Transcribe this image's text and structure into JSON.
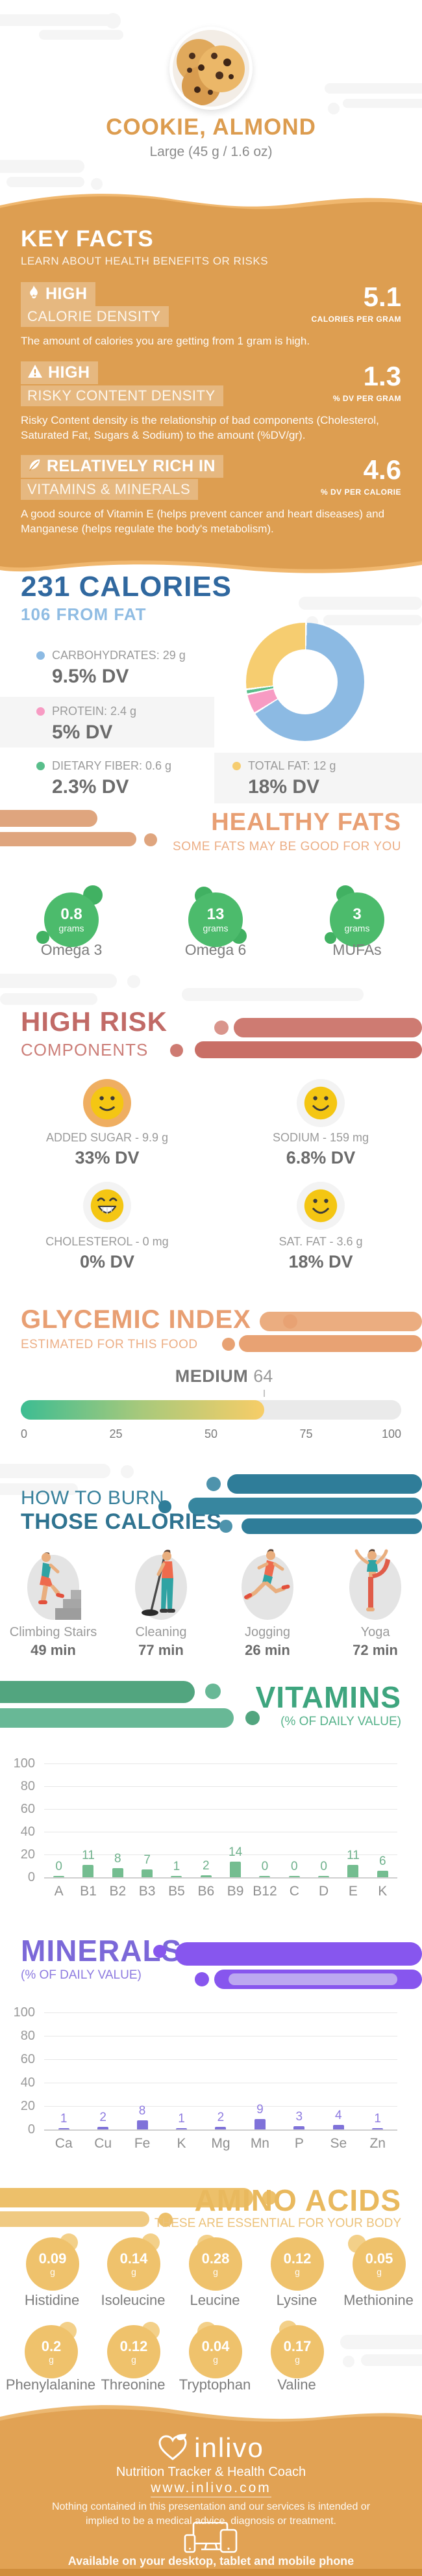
{
  "header": {
    "title": "COOKIE, ALMOND",
    "subtitle": "Large (45 g / 1.6 oz)"
  },
  "key_facts": {
    "title": "KEY FACTS",
    "subtitle": "LEARN ABOUT HEALTH BENEFITS OR RISKS",
    "facts": [
      {
        "icon": "flame-icon",
        "level": "HIGH",
        "name": "CALORIE DENSITY",
        "value": "5.1",
        "unit": "CALORIES PER GRAM",
        "description": "The amount of calories you are getting from 1 gram is high."
      },
      {
        "icon": "warning-icon",
        "level": "HIGH",
        "name": "RISKY CONTENT DENSITY",
        "value": "1.3",
        "unit": "% DV PER GRAM",
        "description": "Risky Content density is the relationship of bad components (Cholesterol, Saturated Fat, Sugars & Sodium) to the amount (%DV/gr)."
      },
      {
        "icon": "leaf-icon",
        "level": "RELATIVELY RICH IN",
        "name": "VITAMINS & MINERALS",
        "value": "4.6",
        "unit": "% DV PER CALORIE",
        "description": "A good source of Vitamin E (helps prevent cancer and heart diseases) and Manganese (helps regulate the body's metabolism)."
      }
    ]
  },
  "calories": {
    "title": "231 CALORIES",
    "subtitle": "106 FROM FAT",
    "macros": [
      {
        "label": "CARBOHYDRATES: 29 g",
        "dv": "9.5% DV",
        "color": "#8CBAE3"
      },
      {
        "label": "PROTEIN: 2.4 g",
        "dv": "5% DV",
        "color": "#F79BC3"
      },
      {
        "label": "DIETARY FIBER: 0.6 g",
        "dv": "2.3% DV",
        "color": "#59BE8B"
      },
      {
        "label": "TOTAL FAT: 12 g",
        "dv": "18% DV",
        "color": "#F6CD70"
      }
    ]
  },
  "healthy_fats": {
    "title": "HEALTHY FATS",
    "subtitle": "SOME FATS MAY BE GOOD FOR YOU",
    "items": [
      {
        "value": "0.8",
        "unit": "grams",
        "label": "Omega 3"
      },
      {
        "value": "13",
        "unit": "grams",
        "label": "Omega 6"
      },
      {
        "value": "3",
        "unit": "grams",
        "label": "MUFAs"
      }
    ]
  },
  "high_risk": {
    "title": "HIGH RISK",
    "subtitle": "COMPONENTS",
    "items": [
      {
        "label": "ADDED SUGAR - 9.9 g",
        "dv": "33% DV",
        "face": "smile-icon",
        "ring_color": "#EFAE61"
      },
      {
        "label": "SODIUM - 159 mg",
        "dv": "6.8% DV",
        "face": "smile-icon",
        "ring_color": "#F3F3F3"
      },
      {
        "label": "CHOLESTEROL - 0 mg",
        "dv": "0% DV",
        "face": "grin-icon",
        "ring_color": "#F3F3F3"
      },
      {
        "label": "SAT. FAT - 3.6 g",
        "dv": "18% DV",
        "face": "smile-icon",
        "ring_color": "#F3F3F3"
      }
    ]
  },
  "glycemic": {
    "title": "GLYCEMIC INDEX",
    "subtitle": "ESTIMATED FOR THIS FOOD"
  },
  "burn": {
    "title_line1": "HOW TO BURN",
    "title_line2": "THOSE CALORIES",
    "activities": [
      {
        "icon": "climbing-stairs-icon",
        "label": "Climbing Stairs",
        "minutes": "49 min"
      },
      {
        "icon": "cleaning-icon",
        "label": "Cleaning",
        "minutes": "77 min"
      },
      {
        "icon": "jogging-icon",
        "label": "Jogging",
        "minutes": "26 min"
      },
      {
        "icon": "yoga-icon",
        "label": "Yoga",
        "minutes": "72 min"
      }
    ]
  },
  "vitamins": {
    "title": "VITAMINS",
    "subtitle": "(% OF DAILY VALUE)"
  },
  "minerals": {
    "title": "MINERALS",
    "subtitle": "(% OF DAILY VALUE)"
  },
  "amino": {
    "title": "AMINO ACIDS",
    "subtitle": "THESE ARE ESSENTIAL FOR YOUR BODY",
    "items": [
      {
        "value": "0.09",
        "unit": "g",
        "label": "Histidine"
      },
      {
        "value": "0.14",
        "unit": "g",
        "label": "Isoleucine"
      },
      {
        "value": "0.28",
        "unit": "g",
        "label": "Leucine"
      },
      {
        "value": "0.12",
        "unit": "g",
        "label": "Lysine"
      },
      {
        "value": "0.05",
        "unit": "g",
        "label": "Methionine"
      },
      {
        "value": "0.2",
        "unit": "g",
        "label": "Phenylalanine"
      },
      {
        "value": "0.12",
        "unit": "g",
        "label": "Threonine"
      },
      {
        "value": "0.04",
        "unit": "g",
        "label": "Tryptophan"
      },
      {
        "value": "0.17",
        "unit": "g",
        "label": "Valine"
      }
    ]
  },
  "footer": {
    "logo": "inlivo",
    "tagline": "Nutrition Tracker & Health Coach",
    "url": "www.inlivo.com",
    "disclaimer": "Nothing contained in this presentation and our services is intended or implied to be a medical advice, diagnosis or treatment.",
    "availability": "Available on your desktop, tablet and mobile phone"
  },
  "chart_data": [
    {
      "id": "energy-breakdown",
      "type": "pie",
      "donut": true,
      "title": "231 Calories macronutrient breakdown",
      "categories": [
        "Carbohydrates",
        "Protein",
        "Dietary Fiber",
        "Total Fat"
      ],
      "values": [
        29,
        2.4,
        0.6,
        12
      ],
      "unit": "g",
      "dv_percent": [
        "9.5% DV",
        "5% DV",
        "2.3% DV",
        "18% DV"
      ],
      "colors": [
        "#8CBAE3",
        "#F79BC3",
        "#59BE8B",
        "#F6CD70"
      ]
    },
    {
      "id": "glycemic",
      "type": "gauge",
      "title": "Glycemic Index",
      "level": "MEDIUM",
      "value": 64,
      "min": 0,
      "max": 100,
      "ticks": [
        0,
        25,
        50,
        75,
        100
      ],
      "fill_gradient": [
        "#3DBD92",
        "#F7CD67"
      ],
      "track_color": "#EAEAEA"
    },
    {
      "id": "vitamins",
      "type": "bar",
      "title": "VITAMINS (% OF DAILY VALUE)",
      "categories": [
        "A",
        "B1",
        "B2",
        "B3",
        "B5",
        "B6",
        "B9",
        "B12",
        "C",
        "D",
        "E",
        "K"
      ],
      "values": [
        0,
        11,
        8,
        7,
        1,
        2,
        14,
        0,
        0,
        0,
        11,
        6
      ],
      "ylim": [
        0,
        100
      ],
      "yticks": [
        0,
        20,
        40,
        60,
        80,
        100
      ],
      "bar_color": "#74BD90",
      "grid": true,
      "legend": "none"
    },
    {
      "id": "minerals",
      "type": "bar",
      "title": "MINERALS (% OF DAILY VALUE)",
      "categories": [
        "Ca",
        "Cu",
        "Fe",
        "K",
        "Mg",
        "Mn",
        "P",
        "Se",
        "Zn"
      ],
      "values": [
        1,
        2,
        8,
        1,
        2,
        9,
        3,
        4,
        1
      ],
      "ylim": [
        0,
        100
      ],
      "yticks": [
        0,
        20,
        40,
        60,
        80,
        100
      ],
      "bar_color": "#7F72D9",
      "grid": true,
      "legend": "none"
    }
  ]
}
